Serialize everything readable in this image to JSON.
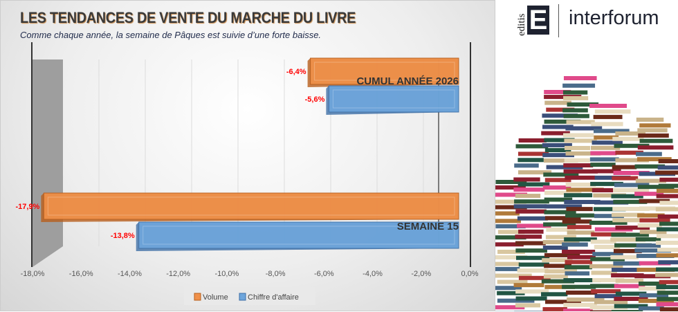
{
  "chart_data": {
    "type": "bar",
    "orientation": "horizontal",
    "title": "LES TENDANCES DE VENTE DU MARCHE DU LIVRE",
    "subtitle": "Comme chaque année, la semaine de Pâques est suivie d’une forte baisse.",
    "categories": [
      "CUMUL ANNÉE 2026",
      "SEMAINE 15"
    ],
    "series": [
      {
        "name": "Volume",
        "values": [
          -6.4,
          -17.9
        ],
        "labels": [
          "-6,4%",
          "-17,9%"
        ],
        "color": "#f0914a"
      },
      {
        "name": "Chiffre d'affaire",
        "values": [
          -5.6,
          -13.8
        ],
        "labels": [
          "-5,6%",
          "-13,8%"
        ],
        "color": "#6ea6dc"
      }
    ],
    "xlim": [
      -18,
      0
    ],
    "xticks": [
      "-18,0%",
      "-16,0%",
      "-14,0%",
      "-12,0%",
      "-10,0%",
      "-8,0%",
      "-6,0%",
      "-4,0%",
      "-2,0%",
      "0,0%"
    ],
    "grid": true,
    "legend": "bottom"
  },
  "logo": {
    "editis": "editis",
    "E": "E",
    "interforum": "interforum"
  }
}
